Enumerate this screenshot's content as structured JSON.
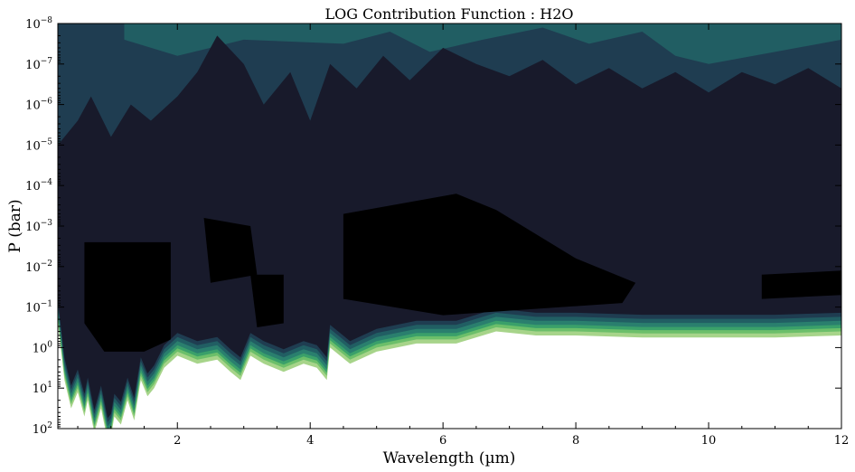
{
  "chart_data": {
    "type": "heatmap",
    "subtype": "filled-contour",
    "title": "LOG Contribution Function : H2O",
    "xlabel": "Wavelength (µm)",
    "ylabel": "P (bar)",
    "xlim": [
      0.2,
      12
    ],
    "ylim_log10": [
      2,
      -8
    ],
    "yscale": "log",
    "y_inverted": true,
    "x_ticks": [
      {
        "value": 2,
        "label": "2"
      },
      {
        "value": 4,
        "label": "4"
      },
      {
        "value": 6,
        "label": "6"
      },
      {
        "value": 8,
        "label": "8"
      },
      {
        "value": 10,
        "label": "10"
      },
      {
        "value": 12,
        "label": "12"
      }
    ],
    "y_ticks": [
      {
        "exp": -8,
        "mant": "10",
        "sup": "−8"
      },
      {
        "exp": -7,
        "mant": "10",
        "sup": "−7"
      },
      {
        "exp": -6,
        "mant": "10",
        "sup": "−6"
      },
      {
        "exp": -5,
        "mant": "10",
        "sup": "−5"
      },
      {
        "exp": -4,
        "mant": "10",
        "sup": "−4"
      },
      {
        "exp": -3,
        "mant": "10",
        "sup": "−3"
      },
      {
        "exp": -2,
        "mant": "10",
        "sup": "−2"
      },
      {
        "exp": -1,
        "mant": "10",
        "sup": "−1"
      },
      {
        "exp": 0,
        "mant": "10",
        "sup": "0"
      },
      {
        "exp": 1,
        "mant": "10",
        "sup": "1"
      },
      {
        "exp": 2,
        "mant": "10",
        "sup": "2"
      }
    ],
    "colormap_levels": [
      "#a7d48a",
      "#6cbf6a",
      "#3aa06a",
      "#2a7f6e",
      "#215e63",
      "#1f3d51",
      "#181a2b",
      "#000000"
    ],
    "contours": {
      "lower_edge": [
        [
          0.2,
          -0.9
        ],
        [
          0.3,
          0.5
        ],
        [
          0.4,
          1.2
        ],
        [
          0.5,
          0.8
        ],
        [
          0.6,
          1.4
        ],
        [
          0.65,
          1.0
        ],
        [
          0.75,
          1.8
        ],
        [
          0.85,
          1.2
        ],
        [
          0.95,
          2.0
        ],
        [
          1.0,
          1.9
        ],
        [
          1.05,
          1.4
        ],
        [
          1.15,
          1.6
        ],
        [
          1.25,
          1.0
        ],
        [
          1.35,
          1.5
        ],
        [
          1.45,
          0.5
        ],
        [
          1.55,
          0.9
        ],
        [
          1.65,
          0.7
        ],
        [
          1.8,
          0.2
        ],
        [
          2.0,
          -0.1
        ],
        [
          2.3,
          0.1
        ],
        [
          2.6,
          0.0
        ],
        [
          2.8,
          0.3
        ],
        [
          2.95,
          0.5
        ],
        [
          3.1,
          -0.1
        ],
        [
          3.3,
          0.1
        ],
        [
          3.6,
          0.3
        ],
        [
          3.9,
          0.1
        ],
        [
          4.1,
          0.2
        ],
        [
          4.25,
          0.5
        ],
        [
          4.3,
          -0.3
        ],
        [
          4.6,
          0.1
        ],
        [
          5.0,
          -0.2
        ],
        [
          5.6,
          -0.4
        ],
        [
          6.2,
          -0.4
        ],
        [
          6.8,
          -0.7
        ],
        [
          7.4,
          -0.6
        ],
        [
          8.0,
          -0.6
        ],
        [
          9.0,
          -0.55
        ],
        [
          10,
          -0.55
        ],
        [
          11,
          -0.55
        ],
        [
          12,
          -0.6
        ]
      ],
      "dark_upper_edge": [
        [
          0.2,
          -5.0
        ],
        [
          0.5,
          -5.6
        ],
        [
          0.7,
          -6.2
        ],
        [
          1.0,
          -5.2
        ],
        [
          1.3,
          -6.0
        ],
        [
          1.6,
          -5.6
        ],
        [
          2.0,
          -6.2
        ],
        [
          2.3,
          -6.8
        ],
        [
          2.6,
          -7.7
        ],
        [
          3.0,
          -7.0
        ],
        [
          3.3,
          -6.0
        ],
        [
          3.7,
          -6.8
        ],
        [
          4.0,
          -5.6
        ],
        [
          4.3,
          -7.0
        ],
        [
          4.7,
          -6.4
        ],
        [
          5.1,
          -7.2
        ],
        [
          5.5,
          -6.6
        ],
        [
          6.0,
          -7.4
        ],
        [
          6.5,
          -7.0
        ],
        [
          7.0,
          -6.7
        ],
        [
          7.5,
          -7.1
        ],
        [
          8.0,
          -6.5
        ],
        [
          8.5,
          -6.9
        ],
        [
          9.0,
          -6.4
        ],
        [
          9.5,
          -6.8
        ],
        [
          10,
          -6.3
        ],
        [
          10.5,
          -6.8
        ],
        [
          11,
          -6.5
        ],
        [
          11.5,
          -6.9
        ],
        [
          12,
          -6.4
        ]
      ],
      "black_core_regions": [
        [
          [
            0.6,
            -2.6
          ],
          [
            1.9,
            -2.6
          ],
          [
            1.9,
            -0.2
          ],
          [
            1.5,
            0.1
          ],
          [
            0.9,
            0.1
          ],
          [
            0.6,
            -0.6
          ]
        ],
        [
          [
            2.4,
            -3.2
          ],
          [
            3.1,
            -3.0
          ],
          [
            3.2,
            -1.8
          ],
          [
            2.5,
            -1.6
          ]
        ],
        [
          [
            3.1,
            -1.8
          ],
          [
            3.6,
            -1.8
          ],
          [
            3.6,
            -0.6
          ],
          [
            3.2,
            -0.5
          ]
        ],
        [
          [
            4.5,
            -3.3
          ],
          [
            6.2,
            -3.8
          ],
          [
            6.8,
            -3.4
          ],
          [
            8.0,
            -2.2
          ],
          [
            8.9,
            -1.6
          ],
          [
            8.7,
            -1.1
          ],
          [
            6.0,
            -0.8
          ],
          [
            4.5,
            -1.2
          ]
        ],
        [
          [
            10.8,
            -1.8
          ],
          [
            12.0,
            -1.9
          ],
          [
            12.0,
            -1.3
          ],
          [
            10.8,
            -1.2
          ]
        ]
      ]
    }
  }
}
